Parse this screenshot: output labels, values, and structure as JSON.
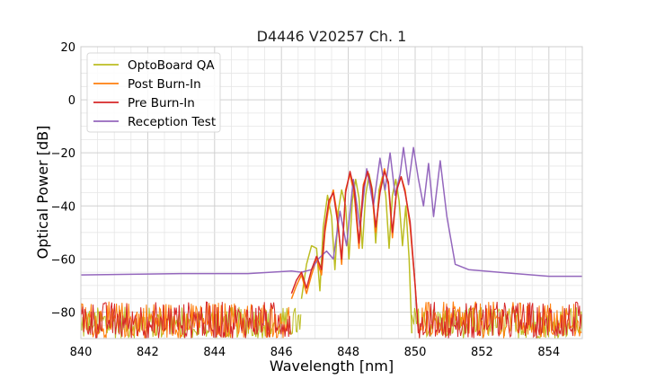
{
  "chart_data": {
    "type": "line",
    "title": "D4446 V20257 Ch. 1",
    "xlabel": "Wavelength [nm]",
    "ylabel": "Optical Power [dB]",
    "xlim": [
      840,
      855
    ],
    "ylim": [
      -90,
      20
    ],
    "xticks": [
      840,
      842,
      844,
      846,
      848,
      850,
      852,
      854
    ],
    "yticks": [
      20,
      0,
      -20,
      -40,
      -60,
      -80
    ],
    "xtick_labels": [
      "840",
      "842",
      "844",
      "846",
      "848",
      "850",
      "852",
      "854"
    ],
    "ytick_labels": [
      "20",
      "0",
      "−20",
      "−40",
      "−60",
      "−80"
    ],
    "grid": true,
    "legend_position": "upper-left",
    "series": [
      {
        "name": "OptoBoard QA",
        "color": "#bcbd22",
        "noise_floor": [
          -90,
          -78
        ],
        "noise_ranges": [
          [
            840,
            846.6
          ],
          [
            849.9,
            855
          ]
        ],
        "x": [
          846.6,
          846.75,
          846.9,
          847.05,
          847.15,
          847.25,
          847.38,
          847.5,
          847.6,
          847.7,
          847.8,
          847.92,
          848.02,
          848.12,
          848.22,
          848.32,
          848.42,
          848.52,
          848.62,
          848.72,
          848.82,
          848.92,
          849.02,
          849.12,
          849.22,
          849.32,
          849.42,
          849.52,
          849.62,
          849.72,
          849.82,
          849.9
        ],
        "y": [
          -75,
          -62,
          -55,
          -56,
          -72,
          -48,
          -36,
          -44,
          -64,
          -42,
          -34,
          -40,
          -60,
          -38,
          -30,
          -37,
          -56,
          -36,
          -28,
          -34,
          -54,
          -34,
          -29,
          -36,
          -56,
          -36,
          -30,
          -38,
          -55,
          -40,
          -60,
          -88
        ]
      },
      {
        "name": "Post Burn-In",
        "color": "#ff7f0e",
        "noise_floor": [
          -90,
          -76
        ],
        "noise_ranges": [
          [
            840,
            846.3
          ],
          [
            850.1,
            855
          ]
        ],
        "x": [
          846.3,
          846.45,
          846.6,
          846.75,
          846.9,
          847.05,
          847.2,
          847.3,
          847.42,
          847.55,
          847.68,
          847.8,
          847.92,
          848.05,
          848.18,
          848.32,
          848.45,
          848.58,
          848.7,
          848.82,
          848.95,
          849.08,
          849.2,
          849.32,
          849.45,
          849.58,
          849.7,
          849.85,
          850.0,
          850.1
        ],
        "y": [
          -75,
          -70,
          -66,
          -73,
          -66,
          -60,
          -66,
          -50,
          -40,
          -34,
          -44,
          -62,
          -34,
          -28,
          -36,
          -56,
          -32,
          -27,
          -34,
          -50,
          -34,
          -26,
          -32,
          -52,
          -33,
          -29,
          -34,
          -48,
          -70,
          -88
        ]
      },
      {
        "name": "Pre Burn-In",
        "color": "#d62728",
        "noise_floor": [
          -90,
          -76
        ],
        "noise_ranges": [
          [
            840,
            846.3
          ],
          [
            850.1,
            855
          ]
        ],
        "x": [
          846.3,
          846.45,
          846.6,
          846.75,
          846.9,
          847.05,
          847.2,
          847.3,
          847.42,
          847.55,
          847.68,
          847.8,
          847.92,
          848.05,
          848.18,
          848.32,
          848.45,
          848.58,
          848.7,
          848.82,
          848.95,
          849.08,
          849.2,
          849.32,
          849.45,
          849.58,
          849.7,
          849.85,
          850.0,
          850.1
        ],
        "y": [
          -73,
          -68,
          -65,
          -71,
          -64,
          -59,
          -64,
          -48,
          -38,
          -35,
          -46,
          -60,
          -35,
          -27,
          -34,
          -54,
          -33,
          -27,
          -33,
          -48,
          -35,
          -27,
          -31,
          -50,
          -34,
          -29,
          -35,
          -46,
          -70,
          -88
        ]
      },
      {
        "name": "Reception Test",
        "color": "#9467bd",
        "x": [
          840,
          843,
          845,
          846.3,
          846.6,
          846.9,
          847.1,
          847.35,
          847.55,
          847.75,
          847.95,
          848.15,
          848.35,
          848.55,
          848.75,
          848.95,
          849.1,
          849.25,
          849.4,
          849.55,
          849.65,
          849.8,
          849.95,
          850.1,
          850.25,
          850.4,
          850.55,
          850.75,
          850.95,
          851.2,
          851.6,
          852.5,
          854,
          855
        ],
        "y": [
          -66,
          -65.5,
          -65.5,
          -64.5,
          -65,
          -64,
          -60,
          -57,
          -60,
          -42,
          -55,
          -30,
          -48,
          -26,
          -40,
          -22,
          -34,
          -20,
          -36,
          -28,
          -18,
          -32,
          -18,
          -30,
          -40,
          -24,
          -44,
          -23,
          -44,
          -62,
          -64,
          -65,
          -66.5,
          -66.5
        ]
      }
    ]
  }
}
